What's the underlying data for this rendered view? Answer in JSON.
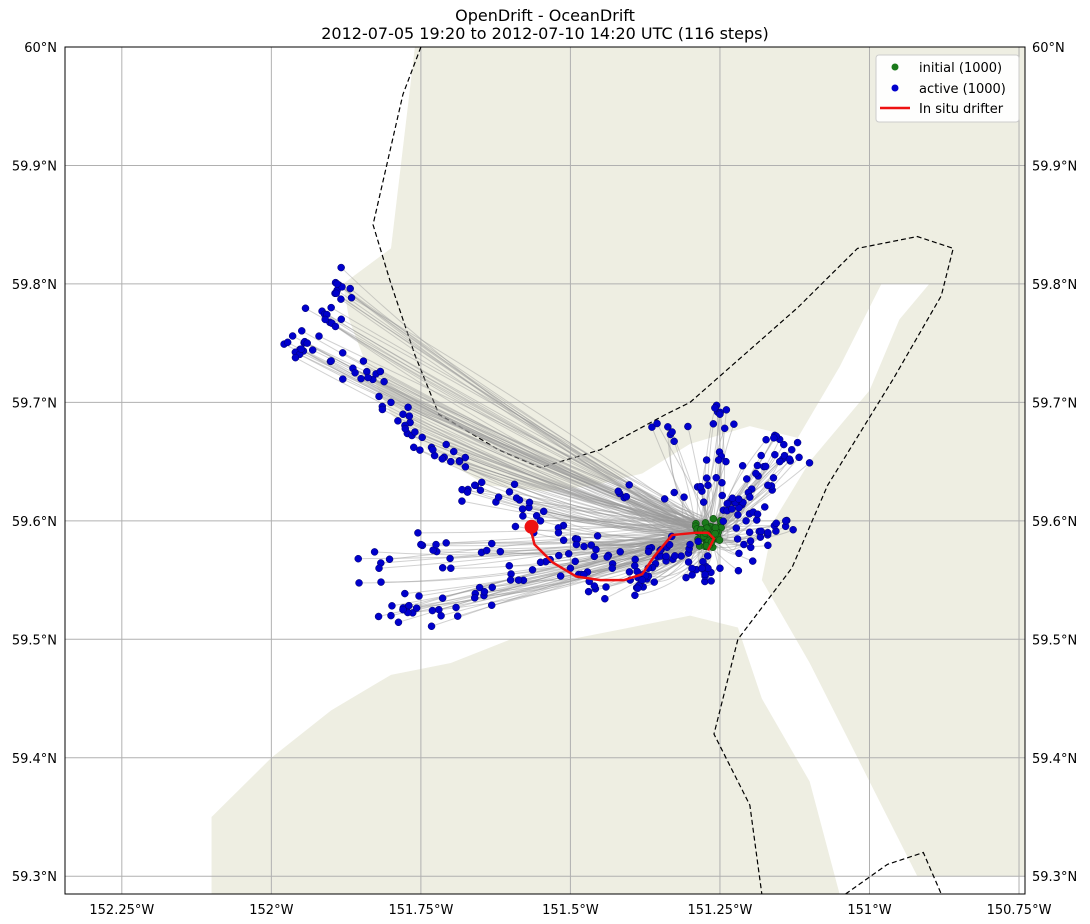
{
  "chart_data": {
    "type": "scatter",
    "title": "OpenDrift - OceanDrift",
    "subtitle": "2012-07-05 19:20 to 2012-07-10 14:20 UTC (116 steps)",
    "xlim": [
      -152.345,
      -150.74
    ],
    "ylim": [
      59.285,
      60.0
    ],
    "x_ticks": [
      -152.25,
      -152.0,
      -151.75,
      -151.5,
      -151.25,
      -151.0,
      -150.75
    ],
    "x_tick_labels": [
      "152.25°W",
      "152°W",
      "151.75°W",
      "151.5°W",
      "151.25°W",
      "151°W",
      "150.75°W"
    ],
    "y_ticks": [
      59.3,
      59.4,
      59.5,
      59.6,
      59.7,
      59.8,
      59.9,
      60.0
    ],
    "y_tick_labels": [
      "59.3°N",
      "59.4°N",
      "59.5°N",
      "59.6°N",
      "59.7°N",
      "59.8°N",
      "59.9°N",
      "60°N"
    ],
    "grid": true,
    "legend_position": "top-right",
    "series": [
      {
        "name": "initial (1000)",
        "marker": "circle",
        "color": "#1a7a1a",
        "center": [
          -151.27,
          59.59
        ],
        "spread": [
          0.03,
          0.015
        ],
        "count": 1000
      },
      {
        "name": "active (1000)",
        "marker": "circle",
        "color": "#0000cc",
        "count": 1000,
        "sample_points": [
          [
            -151.89,
            59.8
          ],
          [
            -151.9,
            59.78
          ],
          [
            -151.91,
            59.77
          ],
          [
            -151.94,
            59.75
          ],
          [
            -151.95,
            59.745
          ],
          [
            -151.9,
            59.735
          ],
          [
            -151.86,
            59.725
          ],
          [
            -151.85,
            59.72
          ],
          [
            -151.82,
            59.705
          ],
          [
            -151.8,
            59.7
          ],
          [
            -151.78,
            59.69
          ],
          [
            -151.76,
            59.675
          ],
          [
            -151.73,
            59.66
          ],
          [
            -151.7,
            59.65
          ],
          [
            -151.66,
            59.63
          ],
          [
            -151.62,
            59.62
          ],
          [
            -151.58,
            59.61
          ],
          [
            -151.55,
            59.6
          ],
          [
            -151.52,
            59.59
          ],
          [
            -151.49,
            59.58
          ],
          [
            -151.46,
            59.57
          ],
          [
            -151.43,
            59.56
          ],
          [
            -151.4,
            59.55
          ],
          [
            -151.37,
            59.56
          ],
          [
            -151.34,
            59.57
          ],
          [
            -151.3,
            59.58
          ],
          [
            -151.27,
            59.56
          ],
          [
            -151.23,
            59.61
          ],
          [
            -151.2,
            59.62
          ],
          [
            -151.17,
            59.63
          ],
          [
            -151.15,
            59.65
          ],
          [
            -151.13,
            59.66
          ],
          [
            -151.16,
            59.67
          ],
          [
            -151.25,
            59.69
          ],
          [
            -151.33,
            59.675
          ],
          [
            -151.42,
            59.625
          ],
          [
            -151.8,
            59.52
          ],
          [
            -151.78,
            59.525
          ],
          [
            -151.72,
            59.525
          ],
          [
            -151.82,
            59.56
          ],
          [
            -151.66,
            59.535
          ],
          [
            -151.6,
            59.55
          ],
          [
            -151.75,
            59.58
          ],
          [
            -151.7,
            59.56
          ],
          [
            -151.64,
            59.575
          ],
          [
            -151.55,
            59.565
          ],
          [
            -151.5,
            59.56
          ],
          [
            -151.46,
            59.545
          ],
          [
            -151.38,
            59.55
          ],
          [
            -151.35,
            59.575
          ],
          [
            -151.28,
            59.56
          ],
          [
            -151.25,
            59.56
          ],
          [
            -151.17,
            59.59
          ],
          [
            -151.21,
            59.58
          ],
          [
            -151.19,
            59.64
          ],
          [
            -151.24,
            59.65
          ],
          [
            -151.31,
            59.62
          ],
          [
            -151.27,
            59.63
          ],
          [
            -151.22,
            59.605
          ],
          [
            -151.14,
            59.6
          ]
        ]
      },
      {
        "name": "In situ drifter",
        "marker": "line",
        "color": "#ee1111",
        "x": [
          -151.27,
          -151.26,
          -151.27,
          -151.29,
          -151.33,
          -151.36,
          -151.38,
          -151.41,
          -151.45,
          -151.49,
          -151.53,
          -151.56,
          -151.565,
          -151.565
        ],
        "y": [
          59.575,
          59.585,
          59.59,
          59.59,
          59.588,
          59.57,
          59.555,
          59.55,
          59.55,
          59.553,
          59.565,
          59.58,
          59.59,
          59.595
        ]
      }
    ],
    "land_areas": [
      [
        [
          -151.88,
          59.8
        ],
        [
          -151.8,
          59.83
        ],
        [
          -151.76,
          60.0
        ],
        [
          -150.74,
          60.0
        ],
        [
          -150.74,
          59.8
        ],
        [
          -150.98,
          59.8
        ],
        [
          -151.05,
          59.73
        ],
        [
          -151.12,
          59.67
        ],
        [
          -151.2,
          59.68
        ],
        [
          -151.3,
          59.665
        ],
        [
          -151.38,
          59.64
        ],
        [
          -151.46,
          59.63
        ],
        [
          -151.54,
          59.625
        ],
        [
          -151.64,
          59.63
        ],
        [
          -151.74,
          59.66
        ],
        [
          -151.8,
          59.69
        ],
        [
          -151.84,
          59.73
        ],
        [
          -151.87,
          59.77
        ]
      ],
      [
        [
          -151.1,
          59.65
        ],
        [
          -151.0,
          59.71
        ],
        [
          -150.95,
          59.77
        ],
        [
          -150.9,
          59.8
        ],
        [
          -150.74,
          59.8
        ],
        [
          -150.74,
          59.3
        ],
        [
          -150.92,
          59.3
        ],
        [
          -151.0,
          59.38
        ],
        [
          -151.1,
          59.48
        ],
        [
          -151.18,
          59.55
        ],
        [
          -151.16,
          59.6
        ]
      ],
      [
        [
          -152.1,
          59.285
        ],
        [
          -152.1,
          59.35
        ],
        [
          -152.0,
          59.4
        ],
        [
          -151.9,
          59.44
        ],
        [
          -151.8,
          59.47
        ],
        [
          -151.7,
          59.48
        ],
        [
          -151.6,
          59.5
        ],
        [
          -151.5,
          59.5
        ],
        [
          -151.4,
          59.51
        ],
        [
          -151.3,
          59.52
        ],
        [
          -151.22,
          59.51
        ],
        [
          -151.18,
          59.45
        ],
        [
          -151.1,
          59.38
        ],
        [
          -151.05,
          59.285
        ]
      ]
    ],
    "boundary_lines": [
      [
        [
          -151.75,
          60.0
        ],
        [
          -151.78,
          59.96
        ],
        [
          -151.83,
          59.85
        ],
        [
          -151.8,
          59.8
        ],
        [
          -151.76,
          59.74
        ],
        [
          -151.72,
          59.69
        ],
        [
          -151.62,
          59.66
        ],
        [
          -151.55,
          59.645
        ],
        [
          -151.45,
          59.66
        ],
        [
          -151.34,
          59.69
        ],
        [
          -151.3,
          59.7
        ],
        [
          -151.12,
          59.78
        ],
        [
          -151.02,
          59.83
        ],
        [
          -150.92,
          59.84
        ],
        [
          -150.86,
          59.83
        ],
        [
          -150.88,
          59.79
        ],
        [
          -150.96,
          59.72
        ],
        [
          -151.07,
          59.63
        ],
        [
          -151.13,
          59.56
        ],
        [
          -151.22,
          59.5
        ],
        [
          -151.26,
          59.42
        ],
        [
          -151.2,
          59.36
        ],
        [
          -151.18,
          59.285
        ]
      ],
      [
        [
          -151.04,
          59.285
        ],
        [
          -150.97,
          59.31
        ],
        [
          -150.91,
          59.32
        ],
        [
          -150.88,
          59.285
        ]
      ]
    ]
  },
  "legend": {
    "items": [
      "initial (1000)",
      "active (1000)",
      "In situ drifter"
    ]
  }
}
